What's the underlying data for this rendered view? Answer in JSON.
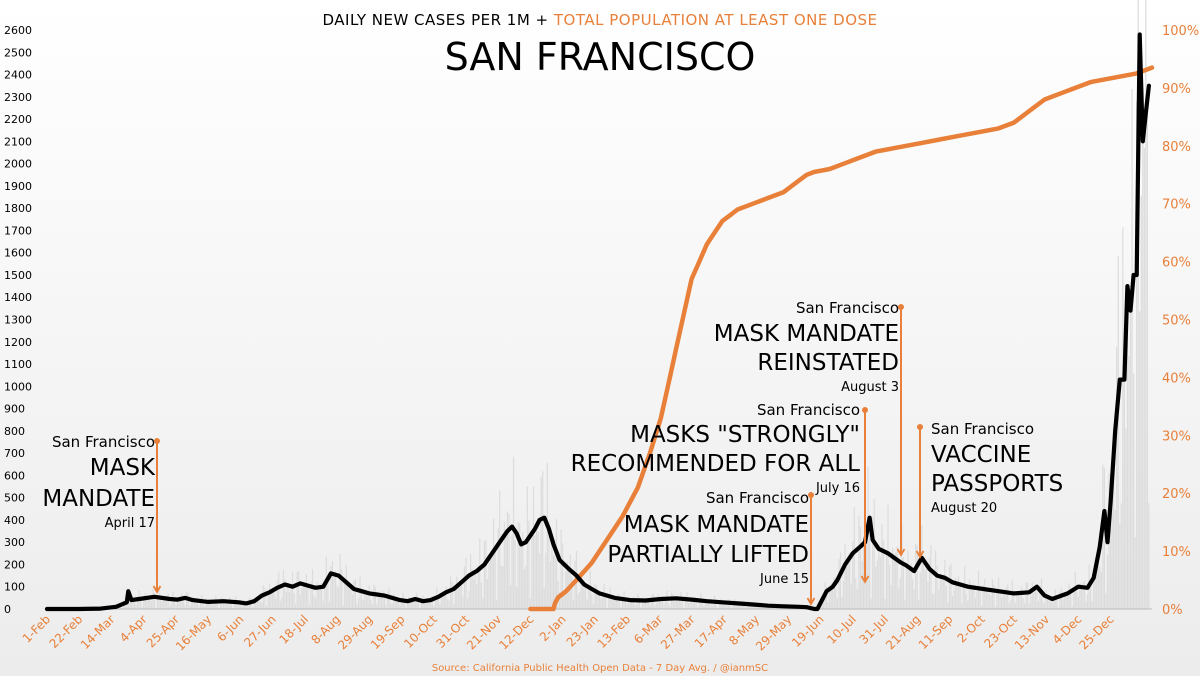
{
  "title_prefix": "DAILY NEW CASES PER 1M + ",
  "title_highlight": "TOTAL POPULATION AT LEAST ONE DOSE",
  "subtitle": "SAN FRANCISCO",
  "source": "Source: California Public Health Open Data - 7 Day Avg. / @ianmSC",
  "colors": {
    "cases": "#000000",
    "vaccination": "#e8803a",
    "bars": "#dcdcdc"
  },
  "chart_data": {
    "type": "line",
    "x_axis": {
      "unit": "day",
      "start_date": "2020-02-01",
      "tick_labels": [
        "1-Feb",
        "22-Feb",
        "14-Mar",
        "4-Apr",
        "25-Apr",
        "16-May",
        "6-Jun",
        "27-Jun",
        "18-Jul",
        "8-Aug",
        "29-Aug",
        "19-Sep",
        "10-Oct",
        "31-Oct",
        "21-Nov",
        "12-Dec",
        "2-Jan",
        "23-Jan",
        "13-Feb",
        "6-Mar",
        "27-Mar",
        "17-Apr",
        "8-May",
        "29-May",
        "19-Jun",
        "10-Jul",
        "31-Jul",
        "21-Aug",
        "11-Sep",
        "2-Oct",
        "23-Oct",
        "13-Nov",
        "4-Dec",
        "25-Dec"
      ],
      "tick_step_days": 21,
      "range_days": [
        0,
        720
      ]
    },
    "y_left": {
      "ylim": [
        0,
        2600
      ],
      "ticks": [
        0,
        100,
        200,
        300,
        400,
        500,
        600,
        700,
        800,
        900,
        1000,
        1100,
        1200,
        1300,
        1400,
        1500,
        1600,
        1700,
        1800,
        1900,
        2000,
        2100,
        2200,
        2300,
        2400,
        2500,
        2600
      ]
    },
    "y_right": {
      "ylim": [
        0,
        100
      ],
      "ticks": [
        "0%",
        "10%",
        "20%",
        "30%",
        "40%",
        "50%",
        "60%",
        "70%",
        "80%",
        "90%",
        "100%"
      ]
    },
    "grid": false,
    "series": [
      {
        "axis": "left",
        "style": "line",
        "points_day_value": [
          [
            0,
            0
          ],
          [
            20,
            0
          ],
          [
            35,
            2
          ],
          [
            45,
            10
          ],
          [
            52,
            30
          ],
          [
            53,
            80
          ],
          [
            55,
            40
          ],
          [
            60,
            45
          ],
          [
            70,
            55
          ],
          [
            80,
            45
          ],
          [
            85,
            42
          ],
          [
            90,
            50
          ],
          [
            95,
            40
          ],
          [
            105,
            32
          ],
          [
            115,
            35
          ],
          [
            125,
            30
          ],
          [
            130,
            25
          ],
          [
            135,
            35
          ],
          [
            140,
            60
          ],
          [
            145,
            75
          ],
          [
            150,
            95
          ],
          [
            155,
            110
          ],
          [
            160,
            100
          ],
          [
            165,
            115
          ],
          [
            170,
            105
          ],
          [
            175,
            95
          ],
          [
            180,
            100
          ],
          [
            185,
            160
          ],
          [
            190,
            150
          ],
          [
            195,
            120
          ],
          [
            200,
            90
          ],
          [
            205,
            80
          ],
          [
            210,
            70
          ],
          [
            215,
            65
          ],
          [
            220,
            60
          ],
          [
            225,
            50
          ],
          [
            230,
            40
          ],
          [
            235,
            35
          ],
          [
            240,
            45
          ],
          [
            245,
            35
          ],
          [
            250,
            40
          ],
          [
            255,
            55
          ],
          [
            260,
            75
          ],
          [
            265,
            90
          ],
          [
            270,
            120
          ],
          [
            275,
            150
          ],
          [
            280,
            170
          ],
          [
            285,
            200
          ],
          [
            290,
            250
          ],
          [
            295,
            300
          ],
          [
            300,
            350
          ],
          [
            303,
            370
          ],
          [
            306,
            340
          ],
          [
            309,
            290
          ],
          [
            312,
            300
          ],
          [
            315,
            330
          ],
          [
            318,
            360
          ],
          [
            321,
            400
          ],
          [
            324,
            410
          ],
          [
            327,
            360
          ],
          [
            330,
            290
          ],
          [
            334,
            220
          ],
          [
            340,
            180
          ],
          [
            345,
            150
          ],
          [
            350,
            110
          ],
          [
            355,
            90
          ],
          [
            360,
            70
          ],
          [
            370,
            50
          ],
          [
            380,
            40
          ],
          [
            390,
            38
          ],
          [
            400,
            45
          ],
          [
            410,
            48
          ],
          [
            420,
            42
          ],
          [
            430,
            35
          ],
          [
            440,
            30
          ],
          [
            450,
            25
          ],
          [
            460,
            20
          ],
          [
            470,
            15
          ],
          [
            480,
            12
          ],
          [
            490,
            10
          ],
          [
            495,
            8
          ],
          [
            500,
            0
          ],
          [
            502,
            0
          ],
          [
            505,
            40
          ],
          [
            508,
            80
          ],
          [
            512,
            100
          ],
          [
            515,
            130
          ],
          [
            520,
            200
          ],
          [
            525,
            250
          ],
          [
            530,
            280
          ],
          [
            533,
            300
          ],
          [
            536,
            410
          ],
          [
            538,
            310
          ],
          [
            542,
            270
          ],
          [
            548,
            250
          ],
          [
            552,
            230
          ],
          [
            556,
            210
          ],
          [
            560,
            195
          ],
          [
            565,
            170
          ],
          [
            570,
            230
          ],
          [
            575,
            180
          ],
          [
            580,
            150
          ],
          [
            585,
            140
          ],
          [
            590,
            120
          ],
          [
            595,
            110
          ],
          [
            600,
            100
          ],
          [
            610,
            90
          ],
          [
            620,
            80
          ],
          [
            630,
            70
          ],
          [
            640,
            75
          ],
          [
            645,
            100
          ],
          [
            650,
            60
          ],
          [
            655,
            45
          ],
          [
            665,
            70
          ],
          [
            672,
            100
          ],
          [
            678,
            95
          ],
          [
            682,
            140
          ],
          [
            686,
            280
          ],
          [
            689,
            440
          ],
          [
            691,
            300
          ],
          [
            693,
            480
          ],
          [
            696,
            800
          ],
          [
            699,
            1030
          ],
          [
            702,
            1030
          ],
          [
            704,
            1450
          ],
          [
            706,
            1340
          ],
          [
            708,
            1500
          ],
          [
            710,
            1500
          ],
          [
            712,
            2580
          ],
          [
            714,
            2100
          ],
          [
            716,
            2230
          ],
          [
            718,
            2350
          ]
        ]
      },
      {
        "axis": "right",
        "style": "line",
        "points_day_value_percent": [
          [
            315,
            0
          ],
          [
            330,
            0
          ],
          [
            331,
            1
          ],
          [
            333,
            2
          ],
          [
            338,
            3
          ],
          [
            345,
            5
          ],
          [
            355,
            8
          ],
          [
            365,
            12
          ],
          [
            375,
            16
          ],
          [
            385,
            21
          ],
          [
            393,
            27
          ],
          [
            400,
            33
          ],
          [
            405,
            39
          ],
          [
            410,
            45
          ],
          [
            415,
            51
          ],
          [
            420,
            57
          ],
          [
            425,
            60
          ],
          [
            430,
            63
          ],
          [
            435,
            65
          ],
          [
            440,
            67
          ],
          [
            445,
            68
          ],
          [
            450,
            69
          ],
          [
            460,
            70
          ],
          [
            470,
            71
          ],
          [
            480,
            72
          ],
          [
            490,
            74
          ],
          [
            495,
            75
          ],
          [
            500,
            75.5
          ],
          [
            510,
            76
          ],
          [
            520,
            77
          ],
          [
            530,
            78
          ],
          [
            540,
            79
          ],
          [
            550,
            79.5
          ],
          [
            560,
            80
          ],
          [
            570,
            80.5
          ],
          [
            580,
            81
          ],
          [
            590,
            81.5
          ],
          [
            600,
            82
          ],
          [
            610,
            82.5
          ],
          [
            620,
            83
          ],
          [
            630,
            84
          ],
          [
            640,
            86
          ],
          [
            650,
            88
          ],
          [
            660,
            89
          ],
          [
            670,
            90
          ],
          [
            680,
            91
          ],
          [
            690,
            91.5
          ],
          [
            700,
            92
          ],
          [
            710,
            92.5
          ],
          [
            720,
            93.5
          ]
        ]
      }
    ],
    "annotations": [
      {
        "pre": "San Francisco",
        "main": [
          "MASK",
          "MANDATE"
        ],
        "date": "April 17"
      },
      {
        "pre": "San Francisco",
        "main": [
          "MASK MANDATE",
          "PARTIALLY LIFTED"
        ],
        "date": "June 15"
      },
      {
        "pre": "San Francisco",
        "main": [
          "MASKS \"STRONGLY\"",
          "RECOMMENDED FOR ALL"
        ],
        "date": "July 16"
      },
      {
        "pre": "San Francisco",
        "main": [
          "MASK MANDATE",
          "REINSTATED"
        ],
        "date": "August 3"
      },
      {
        "pre": "San Francisco",
        "main": [
          "VACCINE",
          "PASSPORTS"
        ],
        "date": "August 20"
      }
    ]
  }
}
